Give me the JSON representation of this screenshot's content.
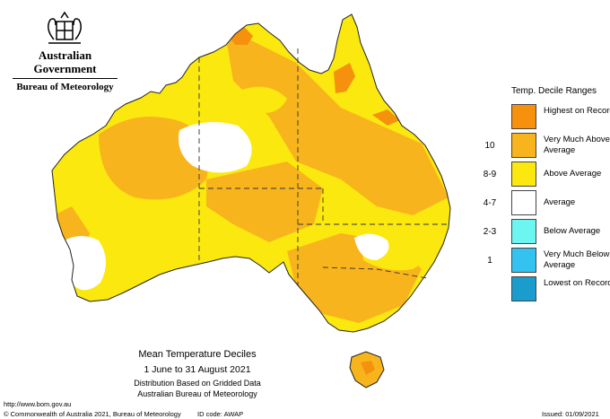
{
  "header": {
    "agency": "Australian Government",
    "bureau": "Bureau of Meteorology"
  },
  "legend": {
    "title": "Temp. Decile Ranges",
    "items": [
      {
        "range": "",
        "label": "Highest on Record",
        "color": "#f5910d"
      },
      {
        "range": "10",
        "label": "Very Much Above Average",
        "color": "#f7b41c"
      },
      {
        "range": "8-9",
        "label": "Above Average",
        "color": "#fbe80f"
      },
      {
        "range": "4-7",
        "label": "Average",
        "color": "#ffffff"
      },
      {
        "range": "2-3",
        "label": "Below Average",
        "color": "#6cf6f2"
      },
      {
        "range": "1",
        "label": "Very Much Below Average",
        "color": "#34c3f1"
      },
      {
        "range": "",
        "label": "Lowest on Record",
        "color": "#1a9dcd"
      }
    ]
  },
  "caption": {
    "title": "Mean Temperature Deciles",
    "period": "1 June to 31 August 2021",
    "line3": "Distribution Based on Gridded Data",
    "line4": "Australian Bureau of Meteorology"
  },
  "footer": {
    "url": "http://www.bom.gov.au",
    "copyright": "© Commonwealth of Australia 2021, Bureau of Meteorology",
    "id_code": "ID code: AWAP",
    "issued": "Issued: 01/09/2021"
  }
}
